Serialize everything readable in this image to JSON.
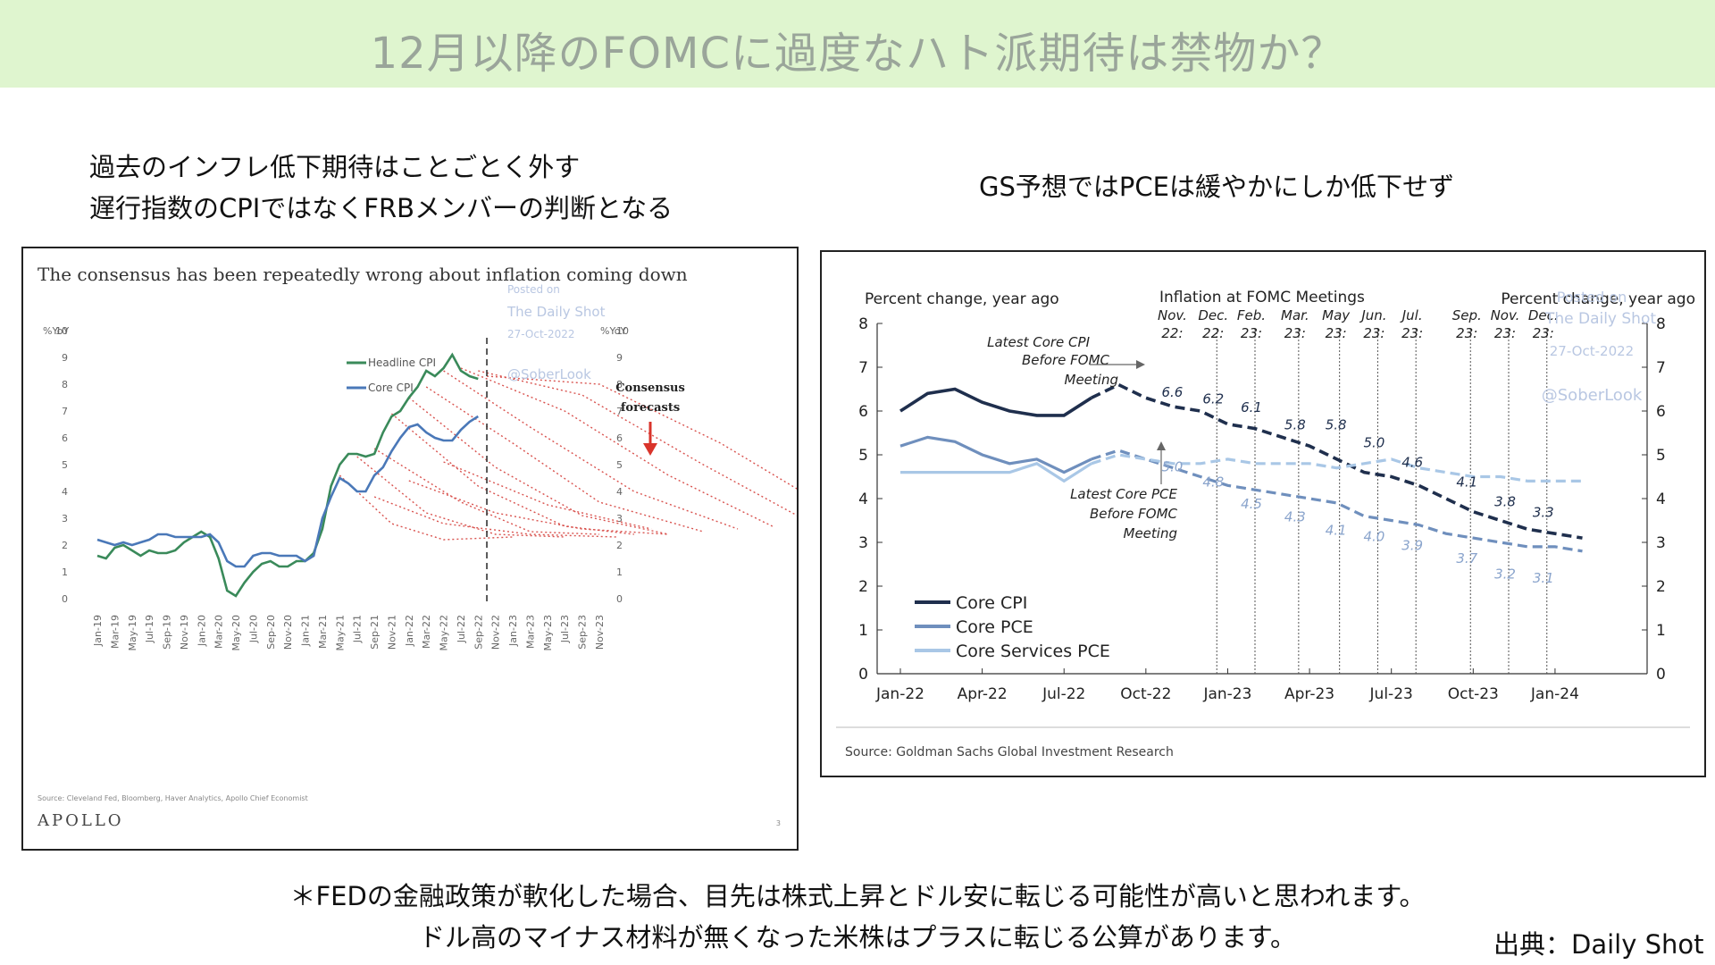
{
  "banner": {
    "title": "12月以降のFOMCに過度なハト派期待は禁物か？"
  },
  "captions": {
    "left_line1": "過去のインフレ低下期待はことごとく外す",
    "left_line2": "遅行指数のCPIではなくFRBメンバーの判断となる",
    "right": "GS予想ではPCEは緩やかにしか低下せず"
  },
  "notes": {
    "line1": "＊FEDの金融政策が軟化した場合、目先は株式上昇とドル安に転じる可能性が高いと思われます。",
    "line2": "ドル高のマイナス材料が無くなった米株はプラスに転じる公算があります。",
    "source": "出典：Daily Shot"
  },
  "chart_data": [
    {
      "type": "line",
      "title": "The consensus has been repeatedly wrong about inflation coming down",
      "ylabel_left": "%YoY",
      "ylabel_right": "%YoY",
      "ylim": [
        0,
        10
      ],
      "yticks": [
        "0",
        "1",
        "2",
        "3",
        "4",
        "5",
        "6",
        "7",
        "8",
        "9",
        "10"
      ],
      "x_tick_labels": [
        "Jan-19",
        "Mar-19",
        "May-19",
        "Jul-19",
        "Sep-19",
        "Nov-19",
        "Jan-20",
        "Mar-20",
        "May-20",
        "Jul-20",
        "Sep-20",
        "Nov-20",
        "Jan-21",
        "Mar-21",
        "May-21",
        "Jul-21",
        "Sep-21",
        "Nov-21",
        "Jan-22",
        "Mar-22",
        "May-22",
        "Jul-22",
        "Sep-22",
        "Nov-22",
        "Jan-23",
        "Mar-23",
        "May-23",
        "Jul-23",
        "Sep-23",
        "Nov-23"
      ],
      "legend": [
        "Headline CPI",
        "Core CPI"
      ],
      "series": [
        {
          "name": "Headline CPI",
          "color": "#3a8a5a",
          "values": [
            1.6,
            1.5,
            1.9,
            2.0,
            1.8,
            1.6,
            1.8,
            1.7,
            1.7,
            1.8,
            2.1,
            2.3,
            2.5,
            2.3,
            1.5,
            0.3,
            0.1,
            0.6,
            1.0,
            1.3,
            1.4,
            1.2,
            1.2,
            1.4,
            1.4,
            1.7,
            2.6,
            4.2,
            5.0,
            5.4,
            5.4,
            5.3,
            5.4,
            6.2,
            6.8,
            7.0,
            7.5,
            7.9,
            8.5,
            8.3,
            8.6,
            9.1,
            8.5,
            8.3,
            8.2
          ]
        },
        {
          "name": "Core CPI",
          "color": "#4a78b8",
          "values": [
            2.2,
            2.1,
            2.0,
            2.1,
            2.0,
            2.1,
            2.2,
            2.4,
            2.4,
            2.3,
            2.3,
            2.3,
            2.3,
            2.4,
            2.1,
            1.4,
            1.2,
            1.2,
            1.6,
            1.7,
            1.7,
            1.6,
            1.6,
            1.6,
            1.4,
            1.6,
            3.0,
            3.8,
            4.5,
            4.3,
            4.0,
            4.0,
            4.6,
            4.9,
            5.5,
            6.0,
            6.4,
            6.5,
            6.2,
            6.0,
            5.9,
            5.9,
            6.3,
            6.6,
            6.8
          ]
        }
      ],
      "annotations": [
        "Consensus",
        "forecasts"
      ],
      "watermark": [
        "Posted on",
        "The Daily Shot",
        "27-Oct-2022",
        "@SoberLook"
      ],
      "source": "Source: Cleveland Fed, Bloomberg, Haver Analytics, Apollo Chief Economist",
      "brand": "APOLLO",
      "page": "3"
    },
    {
      "type": "line",
      "title": "Inflation at FOMC Meetings",
      "ylabel_left": "Percent change, year ago",
      "ylabel_right": "Percent change, year ago",
      "ylim": [
        0,
        8
      ],
      "yticks": [
        "0",
        "1",
        "2",
        "3",
        "4",
        "5",
        "6",
        "7",
        "8"
      ],
      "x_tick_labels": [
        "Jan-22",
        "Apr-22",
        "Jul-22",
        "Oct-22",
        "Jan-23",
        "Apr-23",
        "Jul-23",
        "Oct-23",
        "Jan-24"
      ],
      "meetings": [
        "Nov. 22:",
        "Dec. 22:",
        "Feb. 23:",
        "Mar. 23:",
        "May 23:",
        "Jun. 23:",
        "Jul. 23:",
        "Sep. 23:",
        "Nov. 23:",
        "Dec. 23:"
      ],
      "series": [
        {
          "name": "Core CPI",
          "color": "#1f2f4d",
          "values": [
            6.0,
            6.4,
            6.5,
            6.2,
            6.0,
            5.9,
            5.9,
            6.3,
            6.6,
            6.3,
            6.1,
            6.0,
            5.7,
            5.6,
            5.4,
            5.2,
            4.9,
            4.6,
            4.5,
            4.3,
            4.0,
            3.7,
            3.5,
            3.3,
            3.2,
            3.1
          ]
        },
        {
          "name": "Core PCE",
          "color": "#6f8fbd",
          "values": [
            5.2,
            5.4,
            5.3,
            5.0,
            4.8,
            4.9,
            4.6,
            4.9,
            5.1,
            4.9,
            4.7,
            4.5,
            4.3,
            4.2,
            4.1,
            4.0,
            3.9,
            3.6,
            3.5,
            3.4,
            3.2,
            3.1,
            3.0,
            2.9,
            2.9,
            2.8
          ]
        },
        {
          "name": "Core Services PCE",
          "color": "#a9c7e6",
          "values": [
            4.6,
            4.6,
            4.6,
            4.6,
            4.6,
            4.8,
            4.4,
            4.8,
            5.0,
            4.9,
            4.8,
            4.8,
            4.9,
            4.8,
            4.8,
            4.8,
            4.7,
            4.8,
            4.9,
            4.7,
            4.6,
            4.5,
            4.5,
            4.4,
            4.4,
            4.4
          ]
        }
      ],
      "cpi_labels": [
        "6.6",
        "6.2",
        "6.1",
        "5.8",
        "5.8",
        "5.0",
        "4.6",
        "4.1",
        "3.8",
        "3.3"
      ],
      "pce_labels": [
        "5.0",
        "4.8",
        "4.5",
        "4.3",
        "4.1",
        "4.0",
        "3.9",
        "3.7",
        "3.2",
        "3.1"
      ],
      "annotations": {
        "cpi_note": [
          "Latest Core CPI",
          "Before FOMC",
          "Meeting"
        ],
        "pce_note": [
          "Latest Core PCE",
          "Before FOMC",
          "Meeting"
        ]
      },
      "legend": [
        "Core CPI",
        "Core PCE",
        "Core Services PCE"
      ],
      "watermark": [
        "Posted on",
        "The Daily Shot",
        "27-Oct-2022",
        "@SoberLook"
      ],
      "source": "Source: Goldman Sachs Global Investment Research"
    }
  ]
}
